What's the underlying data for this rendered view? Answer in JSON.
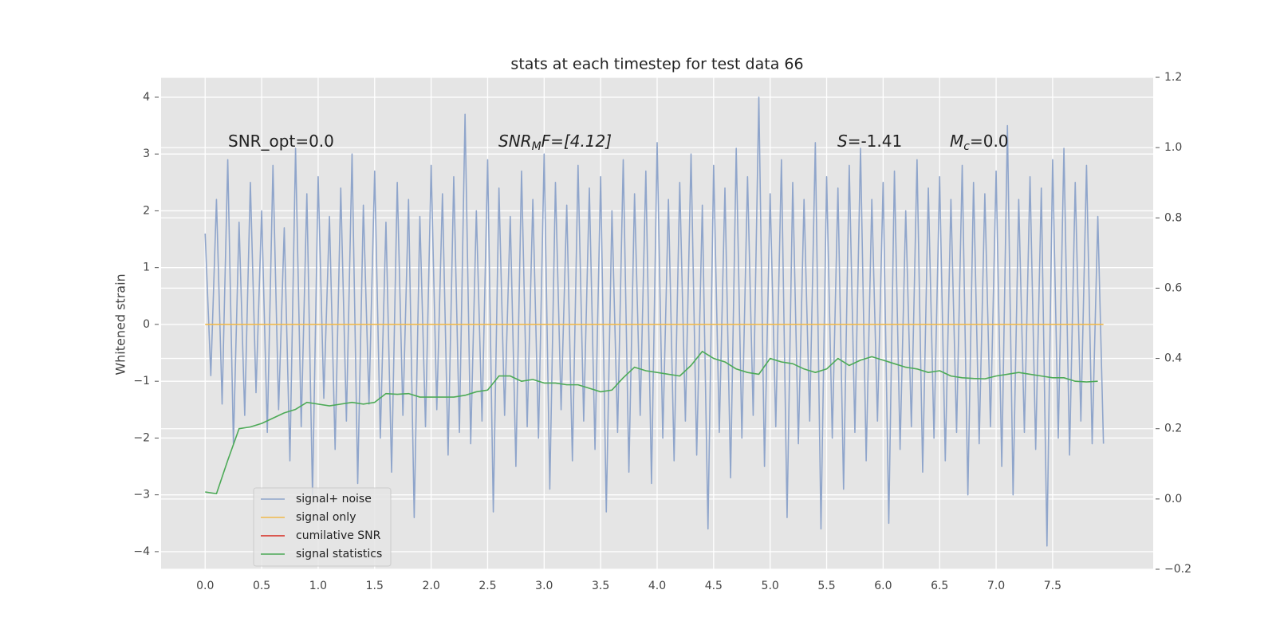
{
  "chart_data": {
    "type": "line",
    "title": "stats at each timestep for test data 66",
    "ylabel": "Whitened strain",
    "xlim": [
      -0.39,
      8.39
    ],
    "ylim": [
      -4.31,
      4.35
    ],
    "y2lim": [
      -0.2,
      1.2
    ],
    "xticks": [
      {
        "value": 0,
        "label": "0.0"
      },
      0.5,
      {
        "value": 1,
        "label": "1.0"
      },
      1.5,
      {
        "value": 2,
        "label": "2.0"
      },
      2.5,
      {
        "value": 3,
        "label": "3.0"
      },
      3.5,
      {
        "value": 4,
        "label": "4.0"
      },
      4.5,
      {
        "value": 5,
        "label": "5.0"
      },
      5.5,
      {
        "value": 6,
        "label": "6.0"
      },
      6.5,
      {
        "value": 7,
        "label": "7.0"
      },
      7.5
    ],
    "yticks": [
      {
        "value": -4,
        "label": "−4"
      },
      {
        "value": -3,
        "label": "−3"
      },
      {
        "value": -2,
        "label": "−2"
      },
      {
        "value": -1,
        "label": "−1"
      },
      0,
      1,
      2,
      3,
      4
    ],
    "y2ticks": [
      {
        "value": -0.2,
        "label": "−0.2"
      },
      {
        "value": 0,
        "label": "0.0"
      },
      0.2,
      0.4,
      0.6,
      0.8,
      {
        "value": 1,
        "label": "1.0"
      },
      1.2
    ],
    "grid": true,
    "legend": "lower left",
    "annotations": [
      {
        "parts": [
          "SNR_opt=0.0"
        ]
      },
      {
        "parts": [
          "SNR",
          "M",
          "F=[4.12]"
        ]
      },
      {
        "parts": [
          "S",
          "=-1.41"
        ]
      },
      {
        "parts": [
          "M",
          "c",
          "=0.0"
        ]
      }
    ],
    "series": [
      {
        "name": "signal+ noise",
        "color": "#8fa5cb",
        "x": [
          0,
          0.05,
          0.1,
          0.15,
          0.2,
          0.25,
          0.3,
          0.35,
          0.4,
          0.45,
          0.5,
          0.55,
          0.6,
          0.65,
          0.7,
          0.75,
          0.8,
          0.85,
          0.9,
          0.95,
          1,
          1.05,
          1.1,
          1.15,
          1.2,
          1.25,
          1.3,
          1.35,
          1.4,
          1.45,
          1.5,
          1.55,
          1.6,
          1.65,
          1.7,
          1.75,
          1.8,
          1.85,
          1.9,
          1.95,
          2,
          2.05,
          2.1,
          2.15,
          2.2,
          2.25,
          2.3,
          2.35,
          2.4,
          2.45,
          2.5,
          2.55,
          2.6,
          2.65,
          2.7,
          2.75,
          2.8,
          2.85,
          2.9,
          2.95,
          3,
          3.05,
          3.1,
          3.15,
          3.2,
          3.25,
          3.3,
          3.35,
          3.4,
          3.45,
          3.5,
          3.55,
          3.6,
          3.65,
          3.7,
          3.75,
          3.8,
          3.85,
          3.9,
          3.95,
          4,
          4.05,
          4.1,
          4.15,
          4.2,
          4.25,
          4.3,
          4.35,
          4.4,
          4.45,
          4.5,
          4.55,
          4.6,
          4.65,
          4.7,
          4.75,
          4.8,
          4.85,
          4.9,
          4.95,
          5,
          5.05,
          5.1,
          5.15,
          5.2,
          5.25,
          5.3,
          5.35,
          5.4,
          5.45,
          5.5,
          5.55,
          5.6,
          5.65,
          5.7,
          5.75,
          5.8,
          5.85,
          5.9,
          5.95,
          6,
          6.05,
          6.1,
          6.15,
          6.2,
          6.25,
          6.3,
          6.35,
          6.4,
          6.45,
          6.5,
          6.55,
          6.6,
          6.65,
          6.7,
          6.75,
          6.8,
          6.85,
          6.9,
          6.95,
          7,
          7.05,
          7.1,
          7.15,
          7.2,
          7.25,
          7.3,
          7.35,
          7.4,
          7.45,
          7.5,
          7.55,
          7.6,
          7.65,
          7.7,
          7.75,
          7.8,
          7.85,
          7.9,
          7.95
        ],
        "values": [
          1.6,
          -0.9,
          2.2,
          -1.4,
          2.9,
          -2.1,
          1.8,
          -1.6,
          2.5,
          -1.2,
          2.0,
          -1.9,
          2.8,
          -1.5,
          1.7,
          -2.4,
          3.1,
          -1.8,
          2.3,
          -3.0,
          2.6,
          -1.3,
          1.9,
          -2.2,
          2.4,
          -1.7,
          3.0,
          -2.8,
          2.1,
          -1.4,
          2.7,
          -2.0,
          1.8,
          -2.6,
          2.5,
          -1.6,
          2.2,
          -3.4,
          1.9,
          -1.8,
          2.8,
          -1.5,
          2.3,
          -2.3,
          2.6,
          -1.9,
          3.7,
          -2.1,
          2.0,
          -1.7,
          2.9,
          -3.3,
          2.4,
          -1.6,
          1.9,
          -2.5,
          2.7,
          -1.8,
          2.2,
          -2.0,
          3.0,
          -2.9,
          2.5,
          -1.5,
          2.1,
          -2.4,
          2.8,
          -1.7,
          2.4,
          -2.2,
          2.6,
          -3.3,
          2.0,
          -1.9,
          2.9,
          -2.6,
          2.3,
          -1.6,
          2.7,
          -2.8,
          3.2,
          -2.0,
          2.2,
          -2.4,
          2.5,
          -1.7,
          3.0,
          -2.3,
          2.1,
          -3.6,
          2.8,
          -1.9,
          2.4,
          -2.7,
          3.1,
          -2.0,
          2.6,
          -1.6,
          4.0,
          -2.5,
          2.3,
          -1.8,
          2.9,
          -3.4,
          2.5,
          -2.1,
          2.2,
          -1.7,
          3.2,
          -3.6,
          2.6,
          -2.0,
          2.4,
          -2.9,
          2.8,
          -1.9,
          3.1,
          -2.4,
          2.2,
          -1.7,
          2.5,
          -3.5,
          2.7,
          -2.2,
          2.0,
          -1.8,
          2.9,
          -2.6,
          2.4,
          -2.0,
          2.6,
          -2.4,
          2.2,
          -1.9,
          2.8,
          -3.0,
          2.5,
          -2.1,
          2.3,
          -1.8,
          2.7,
          -2.5,
          3.5,
          -3.0,
          2.2,
          -1.9,
          2.6,
          -2.2,
          2.4,
          -3.9,
          2.9,
          -2.0,
          3.1,
          -2.3,
          2.5,
          -1.7,
          2.8,
          -2.1,
          1.9,
          -2.1
        ]
      },
      {
        "name": "signal only",
        "color": "#f0b94d",
        "x": [
          0,
          7.95
        ],
        "values": [
          0,
          0
        ]
      },
      {
        "name": "cumilative SNR",
        "color": "#d62a1e",
        "x": [],
        "values": []
      },
      {
        "name": "signal statistics",
        "color": "#4daa57",
        "axis": "y2",
        "x": [
          0,
          0.1,
          0.2,
          0.3,
          0.4,
          0.5,
          0.6,
          0.7,
          0.8,
          0.9,
          1,
          1.1,
          1.2,
          1.3,
          1.4,
          1.5,
          1.6,
          1.7,
          1.8,
          1.9,
          2,
          2.1,
          2.2,
          2.3,
          2.4,
          2.5,
          2.6,
          2.7,
          2.8,
          2.9,
          3,
          3.1,
          3.2,
          3.3,
          3.4,
          3.5,
          3.6,
          3.7,
          3.8,
          3.9,
          4,
          4.1,
          4.2,
          4.3,
          4.4,
          4.5,
          4.6,
          4.7,
          4.8,
          4.9,
          5,
          5.1,
          5.2,
          5.3,
          5.4,
          5.5,
          5.6,
          5.7,
          5.8,
          5.9,
          6,
          6.1,
          6.2,
          6.3,
          6.4,
          6.5,
          6.6,
          6.7,
          6.8,
          6.9,
          7,
          7.1,
          7.2,
          7.3,
          7.4,
          7.5,
          7.6,
          7.7,
          7.8,
          7.9
        ],
        "values": [
          0.02,
          0.015,
          0.11,
          0.2,
          0.205,
          0.215,
          0.23,
          0.245,
          0.255,
          0.275,
          0.27,
          0.265,
          0.27,
          0.275,
          0.27,
          0.275,
          0.3,
          0.298,
          0.3,
          0.29,
          0.29,
          0.29,
          0.29,
          0.295,
          0.305,
          0.31,
          0.35,
          0.35,
          0.335,
          0.34,
          0.33,
          0.33,
          0.325,
          0.325,
          0.315,
          0.305,
          0.31,
          0.345,
          0.375,
          0.365,
          0.36,
          0.355,
          0.35,
          0.38,
          0.42,
          0.4,
          0.39,
          0.37,
          0.36,
          0.355,
          0.4,
          0.39,
          0.385,
          0.37,
          0.36,
          0.37,
          0.4,
          0.38,
          0.395,
          0.405,
          0.395,
          0.385,
          0.375,
          0.37,
          0.36,
          0.365,
          0.35,
          0.345,
          0.343,
          0.342,
          0.35,
          0.355,
          0.36,
          0.355,
          0.35,
          0.345,
          0.345,
          0.335,
          0.333,
          0.335
        ]
      }
    ]
  }
}
